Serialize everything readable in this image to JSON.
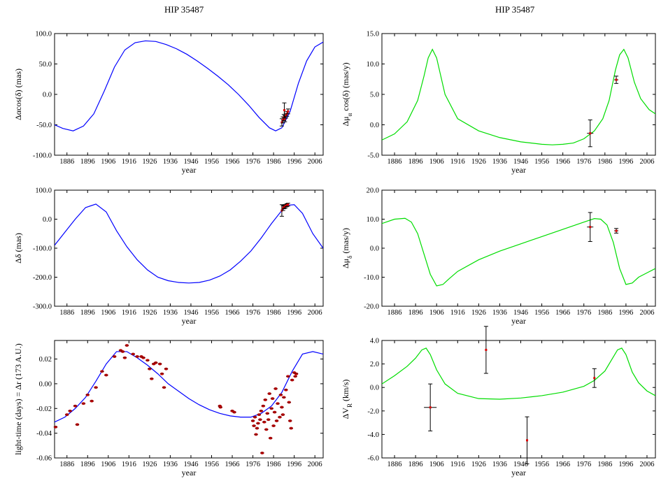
{
  "titles": {
    "left": "HIP  35487",
    "right": "HIP  35487"
  },
  "chart_data": [
    {
      "id": "p1",
      "type": "line",
      "title": "HIP  35487",
      "xlabel": "year",
      "ylabel": "Δαcos(δ) (mas)",
      "xlim": [
        1880,
        2010
      ],
      "ylim": [
        -100,
        100
      ],
      "xticks": [
        1886,
        1896,
        1906,
        1916,
        1926,
        1936,
        1946,
        1956,
        1966,
        1976,
        1986,
        1996,
        2006
      ],
      "yticks": [
        "100.0",
        "50.0",
        "0.0",
        "-50.0",
        "-100.0"
      ],
      "color": "#0000ff",
      "series": [
        {
          "x": [
            1880,
            1884,
            1889,
            1894,
            1899,
            1904,
            1909,
            1914,
            1919,
            1924,
            1929,
            1934,
            1939,
            1944,
            1949,
            1954,
            1959,
            1964,
            1969,
            1974,
            1979,
            1984,
            1987,
            1990,
            1994,
            1998,
            2002,
            2006,
            2010
          ],
          "y": [
            -50,
            -56,
            -60,
            -52,
            -32,
            5,
            45,
            73,
            85,
            88,
            87,
            82,
            75,
            66,
            55,
            43,
            30,
            16,
            0,
            -18,
            -38,
            -55,
            -60,
            -55,
            -28,
            18,
            55,
            78,
            86
          ]
        }
      ],
      "points": [
        {
          "x": 1990.0,
          "y": -46,
          "err": 6
        },
        {
          "x": 1990.5,
          "y": -42,
          "err": 5
        },
        {
          "x": 1991.0,
          "y": -38,
          "err": 5
        },
        {
          "x": 1991.2,
          "y": -26,
          "err": 12
        },
        {
          "x": 1991.5,
          "y": -40,
          "err": 5
        },
        {
          "x": 1992.0,
          "y": -35,
          "err": 4
        },
        {
          "x": 1992.5,
          "y": -32,
          "err": 4
        },
        {
          "x": 1993.0,
          "y": -28,
          "err": 4
        }
      ]
    },
    {
      "id": "p2",
      "type": "line",
      "title": "HIP  35487",
      "xlabel": "year",
      "ylabel": "Δμ_α cos(δ) (mas/y)",
      "xlim": [
        1880,
        2010
      ],
      "ylim": [
        -5,
        15
      ],
      "xticks": [
        1886,
        1896,
        1906,
        1916,
        1926,
        1936,
        1946,
        1956,
        1966,
        1976,
        1986,
        1996,
        2006
      ],
      "yticks": [
        "15.0",
        "10.0",
        "5.0",
        "0.0",
        "-5.0"
      ],
      "color": "#00dd00",
      "series": [
        {
          "x": [
            1880,
            1886,
            1892,
            1897,
            1900,
            1902,
            1904,
            1906,
            1910,
            1916,
            1926,
            1936,
            1946,
            1956,
            1961,
            1966,
            1971,
            1976,
            1981,
            1985,
            1988,
            1991,
            1993,
            1995,
            1997,
            2000,
            2003,
            2007,
            2010
          ],
          "y": [
            -2.5,
            -1.5,
            0.5,
            4,
            8,
            11,
            12.4,
            11,
            5,
            1,
            -1,
            -2.1,
            -2.8,
            -3.2,
            -3.3,
            -3.2,
            -3,
            -2.3,
            -1,
            1,
            4,
            9,
            11.5,
            12.4,
            11,
            7,
            4.3,
            2.5,
            1.8
          ]
        }
      ],
      "points": [
        {
          "x": 1979.0,
          "y": -1.4,
          "xerr": 1.5,
          "err": 2.2
        },
        {
          "x": 1991.4,
          "y": 7.4,
          "xerr": 1.0,
          "err": 0.6
        }
      ]
    },
    {
      "id": "p3",
      "type": "line",
      "title": "",
      "xlabel": "year",
      "ylabel": "Δδ (mas)",
      "xlim": [
        1880,
        2010
      ],
      "ylim": [
        -300,
        100
      ],
      "xticks": [
        1886,
        1896,
        1906,
        1916,
        1926,
        1936,
        1946,
        1956,
        1966,
        1976,
        1986,
        1996,
        2006
      ],
      "yticks": [
        "100.0",
        "0.0",
        "-100.0",
        "-200.0",
        "-300.0"
      ],
      "color": "#0000ff",
      "series": [
        {
          "x": [
            1880,
            1885,
            1890,
            1895,
            1900,
            1905,
            1910,
            1915,
            1920,
            1925,
            1930,
            1935,
            1940,
            1945,
            1950,
            1955,
            1960,
            1965,
            1970,
            1975,
            1980,
            1985,
            1990,
            1993,
            1996,
            2000,
            2005,
            2010
          ],
          "y": [
            -90,
            -45,
            0,
            40,
            52,
            25,
            -40,
            -95,
            -140,
            -175,
            -200,
            -212,
            -218,
            -220,
            -218,
            -210,
            -196,
            -175,
            -145,
            -110,
            -65,
            -15,
            30,
            48,
            50,
            20,
            -50,
            -100
          ]
        }
      ],
      "points": [
        {
          "x": 1990.0,
          "y": 30,
          "err": 20
        },
        {
          "x": 1990.6,
          "y": 38,
          "err": 8
        },
        {
          "x": 1991.2,
          "y": 42,
          "err": 6
        },
        {
          "x": 1991.8,
          "y": 45,
          "err": 6
        },
        {
          "x": 1992.4,
          "y": 48,
          "err": 5
        },
        {
          "x": 1993.0,
          "y": 50,
          "err": 5
        }
      ]
    },
    {
      "id": "p4",
      "type": "line",
      "title": "",
      "xlabel": "year",
      "ylabel": "Δμ_δ (mas/y)",
      "xlim": [
        1880,
        2010
      ],
      "ylim": [
        -20,
        20
      ],
      "xticks": [
        1886,
        1896,
        1906,
        1916,
        1926,
        1936,
        1946,
        1956,
        1966,
        1976,
        1986,
        1996,
        2006
      ],
      "yticks": [
        "20.0",
        "10.0",
        "0.0",
        "-10.0",
        "-20.0"
      ],
      "color": "#00dd00",
      "series": [
        {
          "x": [
            1880,
            1886,
            1891,
            1894,
            1897,
            1900,
            1903,
            1906,
            1909,
            1912,
            1916,
            1926,
            1936,
            1946,
            1956,
            1966,
            1976,
            1981,
            1984,
            1987,
            1990,
            1993,
            1996,
            1999,
            2002,
            2006,
            2010
          ],
          "y": [
            8.5,
            10,
            10.3,
            9,
            5,
            -2,
            -9,
            -13,
            -12.5,
            -10.5,
            -8,
            -4,
            -1,
            1.5,
            4,
            6.5,
            9,
            10.2,
            10,
            8,
            2,
            -7,
            -12.5,
            -12,
            -10,
            -8.5,
            -7
          ]
        }
      ],
      "points": [
        {
          "x": 1979.0,
          "y": 7.3,
          "xerr": 1.5,
          "err": 5
        },
        {
          "x": 1991.4,
          "y": 6.0,
          "xerr": 1.0,
          "err": 0.8
        }
      ]
    },
    {
      "id": "p5",
      "type": "scatter",
      "title": "",
      "xlabel": "year",
      "ylabel": "light-time (days) = Δr (173 A.U.)",
      "xlim": [
        1880,
        2010
      ],
      "ylim": [
        -0.06,
        0.035
      ],
      "xticks": [
        1886,
        1896,
        1906,
        1916,
        1926,
        1936,
        1946,
        1956,
        1966,
        1976,
        1986,
        1996,
        2006
      ],
      "yticks": [
        "0.02",
        "0.00",
        "-0.02",
        "-0.04",
        "-0.06"
      ],
      "ytick_values": [
        0.02,
        0.0,
        -0.02,
        -0.04,
        -0.06
      ],
      "color": "#0000ff",
      "series": [
        {
          "x": [
            1880,
            1885,
            1890,
            1895,
            1900,
            1905,
            1910,
            1915,
            1920,
            1925,
            1930,
            1935,
            1940,
            1945,
            1950,
            1955,
            1960,
            1965,
            1970,
            1975,
            1980,
            1985,
            1990,
            1995,
            2000,
            2005,
            2010
          ],
          "y": [
            -0.031,
            -0.027,
            -0.02,
            -0.011,
            0.002,
            0.016,
            0.026,
            0.026,
            0.021,
            0.015,
            0.008,
            0.0,
            -0.006,
            -0.012,
            -0.017,
            -0.021,
            -0.024,
            -0.026,
            -0.027,
            -0.027,
            -0.024,
            -0.018,
            -0.007,
            0.01,
            0.024,
            0.026,
            0.024
          ]
        }
      ],
      "points": [
        {
          "x": 1880.5,
          "y": -0.035
        },
        {
          "x": 1886,
          "y": -0.025
        },
        {
          "x": 1887.5,
          "y": -0.022
        },
        {
          "x": 1890,
          "y": -0.018
        },
        {
          "x": 1891,
          "y": -0.033
        },
        {
          "x": 1894,
          "y": -0.016
        },
        {
          "x": 1896,
          "y": -0.009
        },
        {
          "x": 1898,
          "y": -0.014
        },
        {
          "x": 1900,
          "y": -0.003
        },
        {
          "x": 1903,
          "y": 0.01
        },
        {
          "x": 1905,
          "y": 0.007
        },
        {
          "x": 1909,
          "y": 0.022
        },
        {
          "x": 1912,
          "y": 0.027
        },
        {
          "x": 1913,
          "y": 0.026
        },
        {
          "x": 1914,
          "y": 0.021
        },
        {
          "x": 1915,
          "y": 0.031
        },
        {
          "x": 1918,
          "y": 0.024
        },
        {
          "x": 1920,
          "y": 0.022
        },
        {
          "x": 1922,
          "y": 0.022
        },
        {
          "x": 1923,
          "y": 0.021
        },
        {
          "x": 1925,
          "y": 0.019
        },
        {
          "x": 1926,
          "y": 0.012
        },
        {
          "x": 1927,
          "y": 0.004
        },
        {
          "x": 1928,
          "y": 0.016
        },
        {
          "x": 1929,
          "y": 0.017
        },
        {
          "x": 1931,
          "y": 0.016
        },
        {
          "x": 1932,
          "y": 0.008
        },
        {
          "x": 1933,
          "y": -0.003
        },
        {
          "x": 1934,
          "y": 0.012
        },
        {
          "x": 1960,
          "y": -0.018
        },
        {
          "x": 1960.3,
          "y": -0.019
        },
        {
          "x": 1966,
          "y": -0.022
        },
        {
          "x": 1967,
          "y": -0.023
        },
        {
          "x": 1976,
          "y": -0.03
        },
        {
          "x": 1976.5,
          "y": -0.034
        },
        {
          "x": 1977,
          "y": -0.027
        },
        {
          "x": 1977.5,
          "y": -0.041
        },
        {
          "x": 1978,
          "y": -0.036
        },
        {
          "x": 1978.5,
          "y": -0.032
        },
        {
          "x": 1979,
          "y": -0.025
        },
        {
          "x": 1979.5,
          "y": -0.029
        },
        {
          "x": 1980,
          "y": -0.022
        },
        {
          "x": 1980.5,
          "y": -0.056
        },
        {
          "x": 1981,
          "y": -0.018
        },
        {
          "x": 1981.5,
          "y": -0.031
        },
        {
          "x": 1982,
          "y": -0.013
        },
        {
          "x": 1982.5,
          "y": -0.037
        },
        {
          "x": 1983,
          "y": -0.024
        },
        {
          "x": 1983.5,
          "y": -0.029
        },
        {
          "x": 1984,
          "y": -0.008
        },
        {
          "x": 1984.5,
          "y": -0.044
        },
        {
          "x": 1985,
          "y": -0.02
        },
        {
          "x": 1985.5,
          "y": -0.012
        },
        {
          "x": 1986,
          "y": -0.034
        },
        {
          "x": 1986.5,
          "y": -0.023
        },
        {
          "x": 1987,
          "y": -0.004
        },
        {
          "x": 1987.5,
          "y": -0.03
        },
        {
          "x": 1988,
          "y": -0.016
        },
        {
          "x": 1989,
          "y": -0.027
        },
        {
          "x": 1989.5,
          "y": -0.009
        },
        {
          "x": 1990,
          "y": -0.019
        },
        {
          "x": 1990.5,
          "y": -0.025
        },
        {
          "x": 1991,
          "y": -0.011
        },
        {
          "x": 1992,
          "y": -0.005
        },
        {
          "x": 1993,
          "y": 0.006
        },
        {
          "x": 1993.5,
          "y": -0.015
        },
        {
          "x": 1994,
          "y": -0.03
        },
        {
          "x": 1994.5,
          "y": -0.036
        },
        {
          "x": 1995,
          "y": 0.003
        },
        {
          "x": 1996,
          "y": 0.009
        },
        {
          "x": 1996.5,
          "y": 0.006
        },
        {
          "x": 1997,
          "y": 0.008
        }
      ]
    },
    {
      "id": "p6",
      "type": "line",
      "title": "",
      "xlabel": "year",
      "ylabel": "ΔV_R (km/s)",
      "xlim": [
        1880,
        2010
      ],
      "ylim": [
        -6,
        4
      ],
      "xticks": [
        1886,
        1896,
        1906,
        1916,
        1926,
        1936,
        1946,
        1956,
        1966,
        1976,
        1986,
        1996,
        2006
      ],
      "yticks": [
        "4.0",
        "2.0",
        "0.0",
        "-2.0",
        "-4.0",
        "-6.0"
      ],
      "color": "#00dd00",
      "series": [
        {
          "x": [
            1880,
            1886,
            1892,
            1896,
            1899,
            1901,
            1903,
            1906,
            1910,
            1916,
            1926,
            1936,
            1946,
            1956,
            1966,
            1976,
            1981,
            1986,
            1989,
            1992,
            1994,
            1996,
            1999,
            2002,
            2006,
            2010
          ],
          "y": [
            0.3,
            1.0,
            1.8,
            2.5,
            3.2,
            3.35,
            2.8,
            1.5,
            0.3,
            -0.5,
            -0.95,
            -1.0,
            -0.9,
            -0.7,
            -0.4,
            0.1,
            0.6,
            1.4,
            2.3,
            3.2,
            3.35,
            2.8,
            1.3,
            0.4,
            -0.3,
            -0.7
          ]
        }
      ],
      "points": [
        {
          "x": 1903.0,
          "y": -1.7,
          "xerr": 3.0,
          "err": 2.0
        },
        {
          "x": 1929.5,
          "y": 3.2,
          "xerr": 0.4,
          "err": 2.0
        },
        {
          "x": 1949.0,
          "y": -4.5,
          "xerr": 0.3,
          "err": 2.0
        },
        {
          "x": 1981.0,
          "y": 0.8,
          "xerr": 0.4,
          "err": 0.8
        }
      ]
    }
  ]
}
